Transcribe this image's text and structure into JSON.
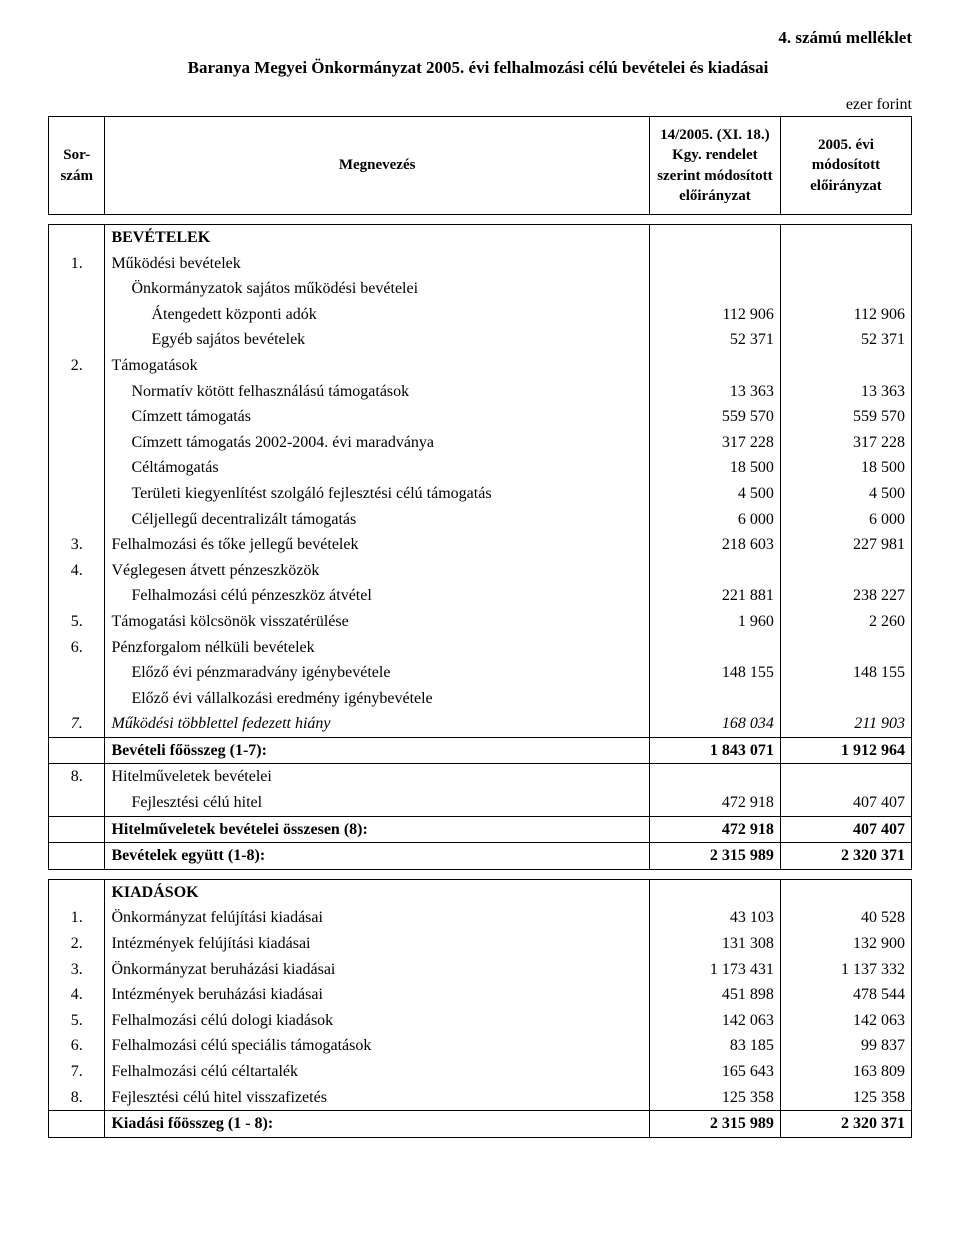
{
  "attachment_label": "4. számú melléklet",
  "title": "Baranya Megyei Önkormányzat 2005. évi felhalmozási célú bevételei és kiadásai",
  "unit_label": "ezer forint",
  "columns": {
    "sorszam": "Sor-\nszám",
    "megnevezes": "Megnevezés",
    "col1": "14/2005. (XI. 18.) Kgy. rendelet szerint módosított előirányzat",
    "col2": "2005. évi módosított előirányzat"
  },
  "sections": [
    {
      "header": "BEVÉTELEK",
      "rows": [
        {
          "n": "1.",
          "label": "Működési bevételek"
        },
        {
          "label": "Önkormányzatok sajátos működési bevételei",
          "indent": 1
        },
        {
          "label": "Átengedett központi adók",
          "indent": 2,
          "v1": "112 906",
          "v2": "112 906"
        },
        {
          "label": "Egyéb sajátos bevételek",
          "indent": 2,
          "v1": "52 371",
          "v2": "52 371"
        },
        {
          "n": "2.",
          "label": "Támogatások"
        },
        {
          "label": "Normatív kötött felhasználású támogatások",
          "indent": 1,
          "v1": "13 363",
          "v2": "13 363"
        },
        {
          "label": "Címzett támogatás",
          "indent": 1,
          "v1": "559 570",
          "v2": "559 570"
        },
        {
          "label": "Címzett támogatás 2002-2004. évi maradványa",
          "indent": 1,
          "v1": "317 228",
          "v2": "317 228"
        },
        {
          "label": "Céltámogatás",
          "indent": 1,
          "v1": "18 500",
          "v2": "18 500"
        },
        {
          "label": "Területi kiegyenlítést szolgáló fejlesztési célú támogatás",
          "indent": 1,
          "v1": "4 500",
          "v2": "4 500"
        },
        {
          "label": "Céljellegű decentralizált támogatás",
          "indent": 1,
          "v1": "6 000",
          "v2": "6 000"
        },
        {
          "n": "3.",
          "label": "Felhalmozási és tőke jellegű bevételek",
          "v1": "218 603",
          "v2": "227 981"
        },
        {
          "n": "4.",
          "label": "Véglegesen átvett pénzeszközök"
        },
        {
          "label": "Felhalmozási célú pénzeszköz átvétel",
          "indent": 1,
          "v1": "221 881",
          "v2": "238 227"
        },
        {
          "n": "5.",
          "label": "Támogatási kölcsönök visszatérülése",
          "v1": "1 960",
          "v2": "2 260"
        },
        {
          "n": "6.",
          "label": "Pénzforgalom nélküli bevételek"
        },
        {
          "label": "Előző évi pénzmaradvány igénybevétele",
          "indent": 1,
          "v1": "148 155",
          "v2": "148 155"
        },
        {
          "label": "Előző évi vállalkozási eredmény igénybevétele",
          "indent": 1
        },
        {
          "n": "7.",
          "label": "Működési többlettel fedezett hiány",
          "italic": true,
          "v1": "168 034",
          "v2": "211 903"
        },
        {
          "label": "Bevételi főösszeg (1-7):",
          "bold": true,
          "box": true,
          "v1": "1 843 071",
          "v2": "1 912 964"
        },
        {
          "n": "8.",
          "label": "Hitelműveletek bevételei"
        },
        {
          "label": "Fejlesztési célú hitel",
          "indent": 1,
          "v1": "472 918",
          "v2": "407 407"
        },
        {
          "label": "Hitelműveletek bevételei összesen (8):",
          "bold": true,
          "box": true,
          "v1": "472 918",
          "v2": "407 407"
        },
        {
          "label": "Bevételek együtt (1-8):",
          "bold": true,
          "bb": true,
          "v1": "2 315 989",
          "v2": "2 320 371"
        }
      ]
    },
    {
      "header": "KIADÁSOK",
      "rows": [
        {
          "n": "1.",
          "label": "Önkormányzat felújítási kiadásai",
          "v1": "43 103",
          "v2": "40 528"
        },
        {
          "n": "2.",
          "label": "Intézmények felújítási kiadásai",
          "v1": "131 308",
          "v2": "132 900"
        },
        {
          "n": "3.",
          "label": "Önkormányzat beruházási kiadásai",
          "v1": "1 173 431",
          "v2": "1 137 332"
        },
        {
          "n": "4.",
          "label": "Intézmények beruházási kiadásai",
          "v1": "451 898",
          "v2": "478 544"
        },
        {
          "n": "5.",
          "label": "Felhalmozási célú dologi kiadások",
          "v1": "142 063",
          "v2": "142 063"
        },
        {
          "n": "6.",
          "label": "Felhalmozási célú speciális támogatások",
          "v1": "83 185",
          "v2": "99 837"
        },
        {
          "n": "7.",
          "label": "Felhalmozási célú céltartalék",
          "v1": "165 643",
          "v2": "163 809"
        },
        {
          "n": "8.",
          "label": "Fejlesztési célú hitel visszafizetés",
          "v1": "125 358",
          "v2": "125 358"
        },
        {
          "label": "Kiadási főösszeg (1 - 8):",
          "bold": true,
          "box": true,
          "v1": "2 315 989",
          "v2": "2 320 371"
        }
      ]
    }
  ]
}
